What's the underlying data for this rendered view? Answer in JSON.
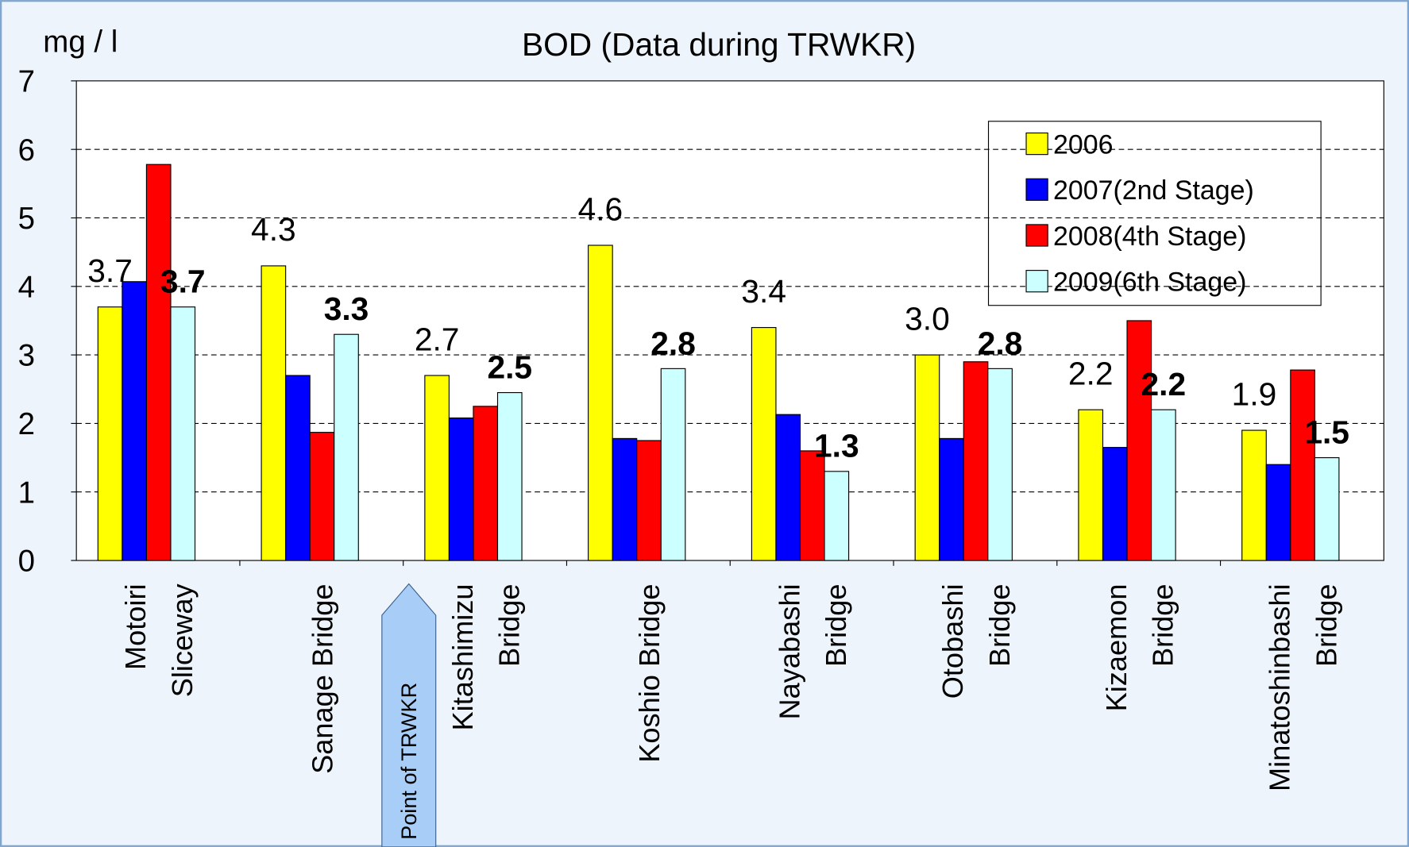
{
  "chart_data": {
    "type": "bar",
    "title": "BOD (Data during TRWKR)",
    "y_label": "mg / l",
    "annotation": "Point of TRWKR",
    "categories": [
      [
        "Motoiri",
        "Sliceway"
      ],
      [
        "Sanage Bridge"
      ],
      [
        "Kitashimizu",
        "Bridge"
      ],
      [
        "Koshio Bridge"
      ],
      [
        "Nayabashi",
        "Bridge"
      ],
      [
        "Otobashi",
        "Bridge"
      ],
      [
        "Kizaemon",
        "Bridge"
      ],
      [
        "Minatoshinbashi",
        "Bridge"
      ]
    ],
    "series": [
      {
        "name": "2006",
        "color": "#ffff00",
        "values": [
          3.7,
          4.3,
          2.7,
          4.6,
          3.4,
          3.0,
          2.2,
          1.9
        ],
        "value_labels": [
          "3.7",
          "4.3",
          "2.7",
          "4.6",
          "3.4",
          "3.0",
          "2.2",
          "1.9"
        ]
      },
      {
        "name": "2007(2nd Stage)",
        "color": "#0000ff",
        "values": [
          4.07,
          2.7,
          2.08,
          1.78,
          2.13,
          1.78,
          1.65,
          1.4
        ]
      },
      {
        "name": "2008(4th Stage)",
        "color": "#ff0000",
        "values": [
          5.78,
          1.87,
          2.25,
          1.75,
          1.6,
          2.9,
          3.5,
          2.78
        ]
      },
      {
        "name": "2009(6th Stage)",
        "color": "#ccffff",
        "values": [
          3.7,
          3.3,
          2.45,
          2.8,
          1.3,
          2.8,
          2.2,
          1.5
        ],
        "value_labels": [
          "3.7",
          "3.3",
          "2.5",
          "2.8",
          "1.3",
          "2.8",
          "2.2",
          "1.5"
        ]
      }
    ],
    "ylim": [
      0,
      7
    ],
    "yticks": [
      0,
      1,
      2,
      3,
      4,
      5,
      6,
      7
    ],
    "grid": true,
    "legend": "top-right"
  }
}
